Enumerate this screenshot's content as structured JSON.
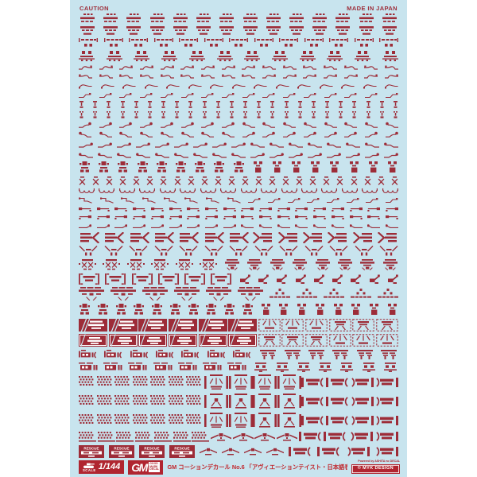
{
  "colors": {
    "sheet": "#c8e4ee",
    "decal": "#9d2c38",
    "accent": "#b02530",
    "title": "#c1272d"
  },
  "header": {
    "caution": "CAUTION",
    "made_in_japan": "MADE IN JAPAN"
  },
  "labels": {
    "rescue": "RESCUE"
  },
  "footer": {
    "scale_word": "SCALE",
    "scale_value": "1/144",
    "gm": "GM",
    "gm_sub": [
      "GOOD",
      "MARK",
      "DECAL"
    ],
    "title": "GM コーションデカール No.6 「アヴィエーションテイスト・日本語表記#1」",
    "powered_by": "Powered by ASHITA no DECAL",
    "copyright": "© MYK DESIGN"
  },
  "rows": [
    {
      "cells": [
        {
          "m": "microA",
          "n": 14
        }
      ]
    },
    {
      "cells": [
        {
          "m": "microB",
          "n": 14
        }
      ]
    },
    {
      "cells": [
        {
          "m": "bracketSq",
          "n": 13
        }
      ]
    },
    {
      "cells": [
        {
          "m": "sqBase",
          "n": 12
        }
      ]
    },
    {
      "cells": [
        {
          "m": "squigL",
          "n": 9
        },
        {
          "m": "squigR",
          "n": 7
        }
      ]
    },
    {
      "cells": [
        {
          "m": "squigR",
          "n": 9
        },
        {
          "m": "squigL",
          "n": 7
        }
      ]
    },
    {
      "cells": [
        {
          "m": "squigS",
          "n": 15
        }
      ]
    },
    {
      "cells": [
        {
          "m": "hookS",
          "n": 16
        }
      ]
    },
    {
      "cells": [
        {
          "m": "pinA",
          "n": 24
        }
      ]
    },
    {
      "cells": [
        {
          "m": "pinB",
          "n": 24
        }
      ]
    },
    {
      "cells": [
        {
          "m": "sqglDot",
          "n": 8
        },
        {
          "m": "dotSqgl",
          "n": 8
        }
      ]
    },
    {
      "cells": [
        {
          "m": "dotSqgl",
          "n": 8
        },
        {
          "m": "sqglDot",
          "n": 8
        }
      ]
    },
    {
      "cells": [
        {
          "m": "longSqA",
          "n": 9
        },
        {
          "m": "longSqB",
          "n": 8
        }
      ]
    },
    {
      "cells": [
        {
          "m": "longSqB",
          "n": 9
        },
        {
          "m": "longSqA",
          "n": 8
        }
      ]
    },
    {
      "cells": [
        {
          "m": "robotA",
          "n": 9
        },
        {
          "m": "robotB",
          "n": 8
        }
      ]
    },
    {
      "cells": [
        {
          "m": "xhat",
          "n": 24
        }
      ]
    },
    {
      "cells": [
        {
          "m": "scallop",
          "n": 16
        }
      ]
    },
    {
      "cells": [
        {
          "m": "hookline",
          "n": 8
        },
        {
          "m": "hookS",
          "n": 8
        }
      ]
    },
    {
      "cells": [
        {
          "m": "flagA",
          "n": 9
        },
        {
          "m": "flagB",
          "n": 9
        }
      ]
    },
    {
      "cells": [
        {
          "m": "flagB",
          "n": 9
        },
        {
          "m": "flagA",
          "n": 9
        }
      ]
    },
    {
      "cells": [
        {
          "m": "tailA",
          "n": 9
        },
        {
          "m": "tailB",
          "n": 9
        }
      ]
    },
    {
      "cells": [
        {
          "m": "arrowA",
          "n": 7
        },
        {
          "m": "arrowB",
          "n": 6
        }
      ]
    },
    {
      "cells": [
        {
          "m": "wposts",
          "n": 13
        }
      ]
    },
    {
      "cells": [
        {
          "m": "xface",
          "n": 6
        },
        {
          "m": "pyrText",
          "n": 8
        }
      ]
    },
    {
      "cells": [
        {
          "m": "brText",
          "n": 6
        },
        {
          "m": "hand",
          "n": 9
        }
      ]
    },
    {
      "cells": [
        {
          "m": "resqPyr",
          "n": 6
        },
        {
          "m": "triText",
          "n": 5
        }
      ]
    },
    {
      "cells": [
        {
          "m": "robotA",
          "n": 10
        },
        {
          "m": "robotB",
          "n": 8
        }
      ]
    },
    {
      "cells": [
        {
          "m": "redbanA",
          "n": 6
        },
        {
          "m": "dashboxA",
          "n": 3
        },
        {
          "m": "dashboxB",
          "n": 3
        }
      ]
    },
    {
      "cells": [
        {
          "m": "redbanB",
          "n": 6
        },
        {
          "m": "dashboxB",
          "n": 3
        },
        {
          "m": "dashboxA",
          "n": 3
        }
      ]
    },
    {
      "cells": [
        {
          "m": "ocBan",
          "n": 7
        },
        {
          "m": "tpost",
          "n": 6
        }
      ]
    },
    {
      "cells": [
        {
          "m": "obSmall",
          "n": 7
        },
        {
          "m": "miniRobot",
          "n": 7
        }
      ]
    },
    {
      "cells": [
        {
          "m": "dotmat",
          "n": 7
        },
        {
          "m": "tallframe",
          "n": 4
        },
        {
          "m": "brkL",
          "n": 2
        },
        {
          "m": "brkR",
          "n": 2
        }
      ]
    },
    {
      "cells": [
        {
          "m": "dotmat",
          "n": 7
        },
        {
          "m": "tallframe2",
          "n": 4
        },
        {
          "m": "brkL",
          "n": 2
        },
        {
          "m": "brkR",
          "n": 2
        }
      ]
    },
    {
      "cells": [
        {
          "m": "dotmat",
          "n": 7
        },
        {
          "m": "tallframe",
          "n": 2
        },
        {
          "m": "tallframe2",
          "n": 2
        },
        {
          "m": "brkL",
          "n": 2
        },
        {
          "m": "brkR",
          "n": 2
        }
      ]
    },
    {
      "cells": [
        {
          "m": "dotmat2",
          "n": 7
        },
        {
          "m": "wingA",
          "n": 4
        },
        {
          "m": "brkL",
          "n": 2
        },
        {
          "m": "brkR",
          "n": 2
        }
      ]
    },
    {
      "cells": [
        {
          "m": "rescueBox",
          "n": 4
        },
        {
          "m": "wingB",
          "n": 4
        },
        {
          "m": "brkL",
          "n": 2
        },
        {
          "m": "brkR",
          "n": 2
        }
      ]
    }
  ]
}
